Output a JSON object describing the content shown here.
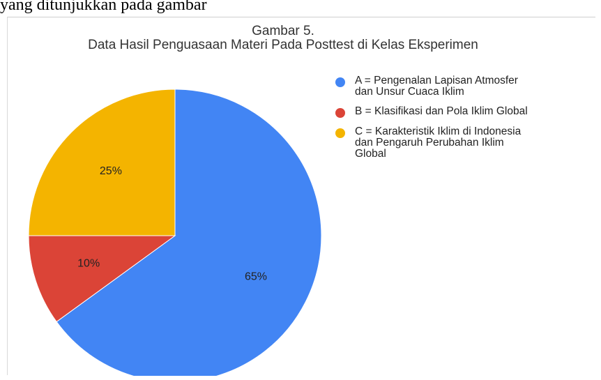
{
  "document": {
    "fragment_text": "yang ditunjukkan pada gambar"
  },
  "chart_data": {
    "type": "pie",
    "title": "Gambar 5.",
    "subtitle": "Data Hasil Penguasaan Materi Pada Posttest di Kelas Eksperimen",
    "legend_position": "right",
    "slices": [
      {
        "key": "A",
        "label": "A = Pengenalan Lapisan Atmosfer\ndan Unsur Cuaca Iklim",
        "value": 65,
        "display": "65%",
        "color": "#4285f4"
      },
      {
        "key": "B",
        "label": "B = Klasifikasi dan Pola Iklim Global",
        "value": 10,
        "display": "10%",
        "color": "#db4437"
      },
      {
        "key": "C",
        "label": "C = Karakteristik Iklim di Indonesia\ndan Pengaruh Perubahan Iklim\nGlobal",
        "value": 25,
        "display": "25%",
        "color": "#f4b400"
      }
    ]
  }
}
